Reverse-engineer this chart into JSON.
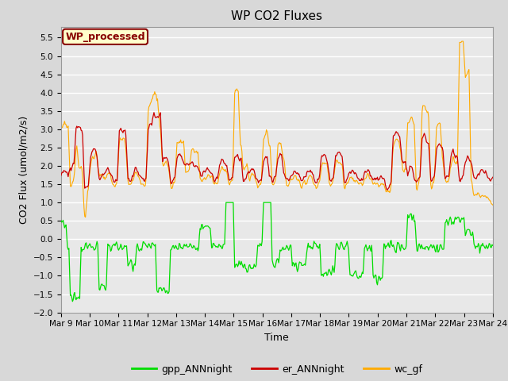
{
  "title": "WP CO2 Fluxes",
  "xlabel": "Time",
  "ylabel": "CO2 Flux (umol/m2/s)",
  "ylim": [
    -2.0,
    5.8
  ],
  "yticks": [
    -2.0,
    -1.5,
    -1.0,
    -0.5,
    0.0,
    0.5,
    1.0,
    1.5,
    2.0,
    2.5,
    3.0,
    3.5,
    4.0,
    4.5,
    5.0,
    5.5
  ],
  "xtick_labels": [
    "Mar 9",
    "Mar 10",
    "Mar 11",
    "Mar 12",
    "Mar 13",
    "Mar 14",
    "Mar 15",
    "Mar 16",
    "Mar 17",
    "Mar 18",
    "Mar 19",
    "Mar 20",
    "Mar 21",
    "Mar 22",
    "Mar 23",
    "Mar 24"
  ],
  "n_points": 600,
  "color_gpp": "#00dd00",
  "color_er": "#cc0000",
  "color_wc": "#ffaa00",
  "legend_labels": [
    "gpp_ANNnight",
    "er_ANNnight",
    "wc_gf"
  ],
  "annotation_text": "WP_processed",
  "annotation_color": "#880000",
  "annotation_bg": "#ffffcc",
  "fig_bg": "#d8d8d8",
  "plot_bg": "#e8e8e8",
  "grid_color": "#ffffff",
  "title_fontsize": 11,
  "axis_fontsize": 9,
  "tick_fontsize": 7.5,
  "legend_fontsize": 9
}
